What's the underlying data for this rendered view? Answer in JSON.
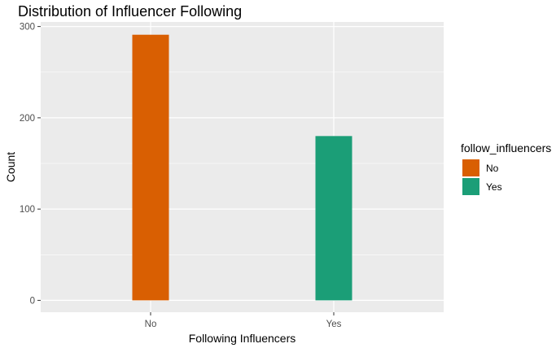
{
  "chart_data": {
    "type": "bar",
    "title": "Distribution of Influencer Following",
    "xlabel": "Following Influencers",
    "ylabel": "Count",
    "categories": [
      "No",
      "Yes"
    ],
    "values": [
      291,
      180
    ],
    "colors": [
      "#D95F02",
      "#1B9E77"
    ],
    "ylim": [
      -13,
      305
    ],
    "yticks": [
      0,
      100,
      200,
      300
    ],
    "ytick_labels": [
      "0",
      "100",
      "200",
      "300"
    ],
    "grid": true,
    "legend": {
      "title": "follow_influencers",
      "position": "right",
      "entries": [
        {
          "label": "No",
          "color": "#D95F02"
        },
        {
          "label": "Yes",
          "color": "#1B9E77"
        }
      ]
    },
    "panel_background": "#EBEBEB",
    "grid_color": "#FFFFFF"
  }
}
